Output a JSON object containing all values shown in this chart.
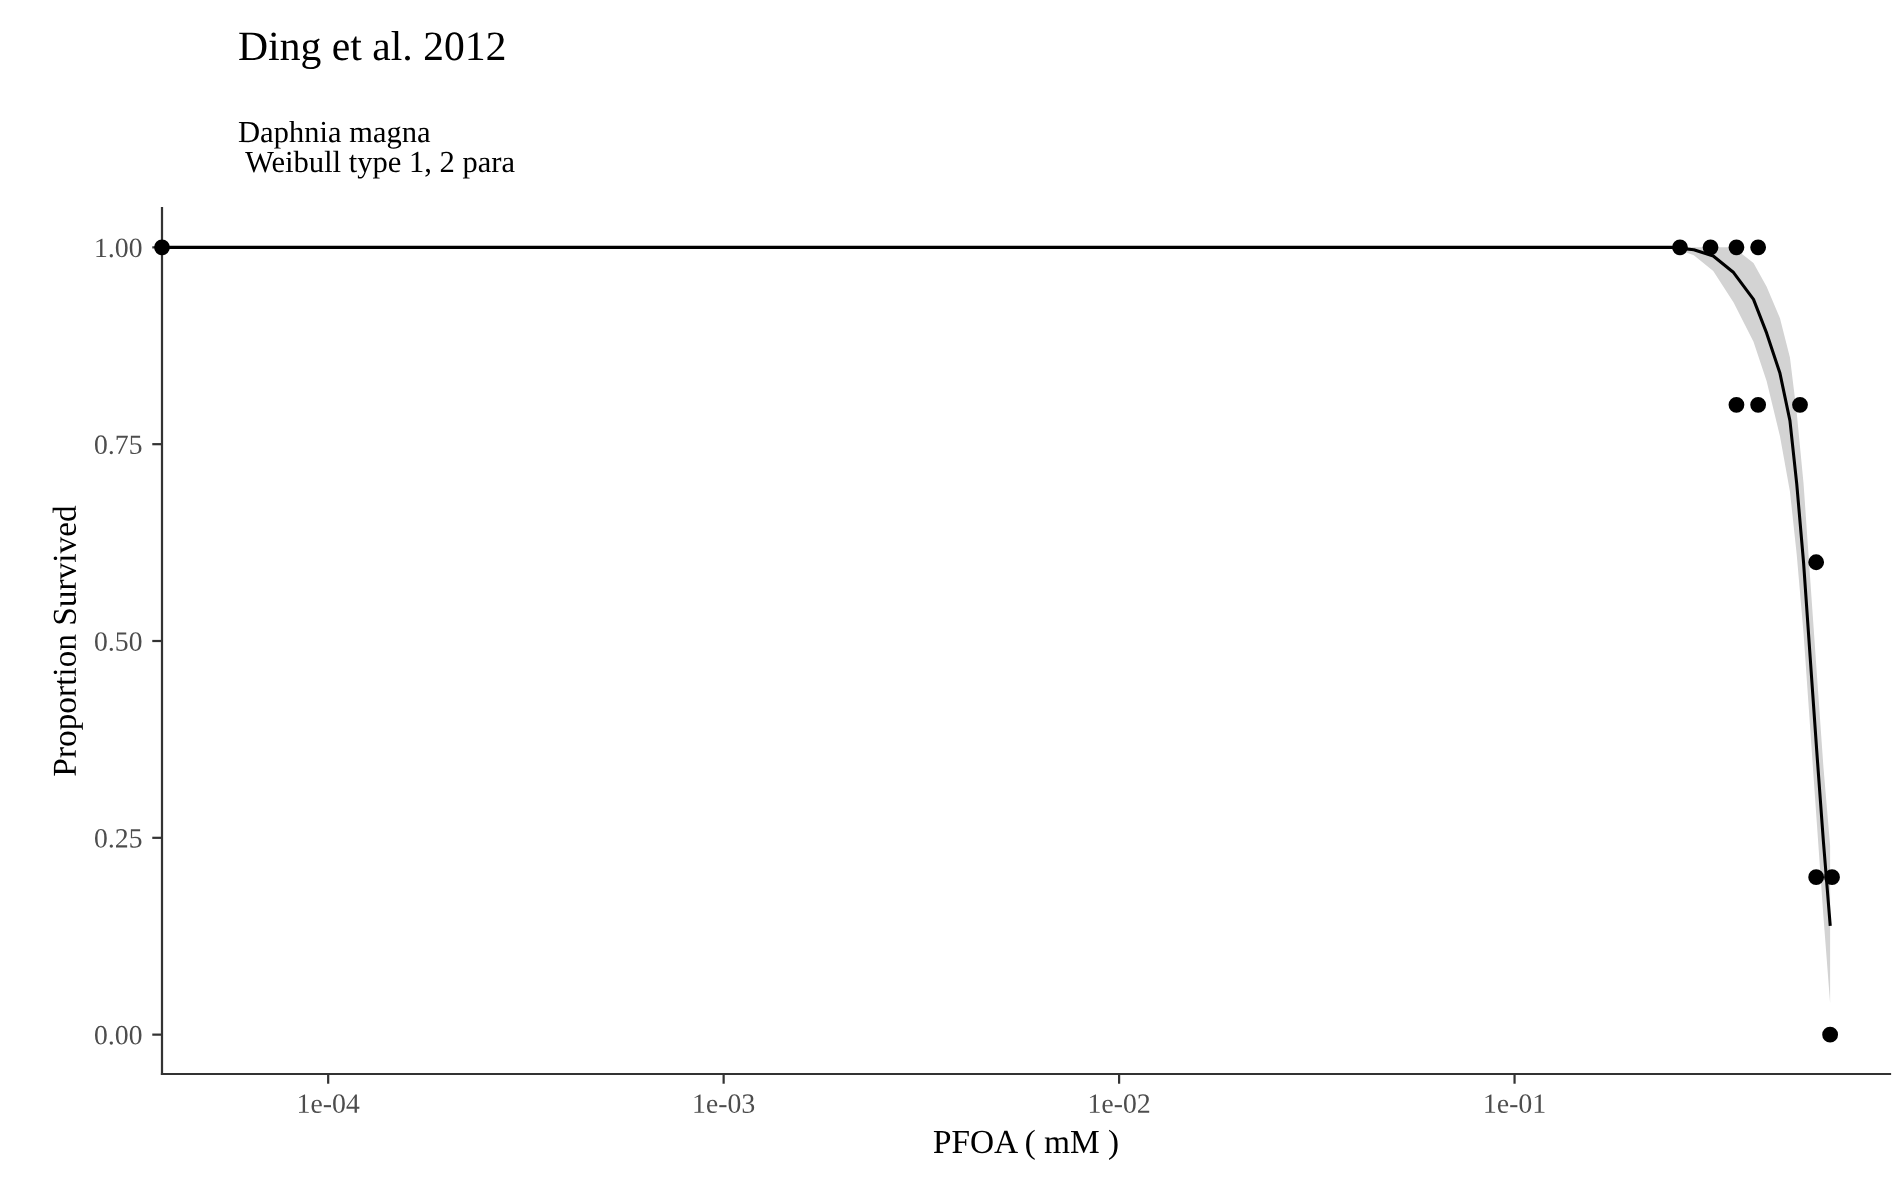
{
  "chart_data": {
    "type": "scatter",
    "title": "Ding et al. 2012",
    "subtitle": "Daphnia magna\n Weibull type 1, 2 para",
    "xlabel": "PFOA ( mM )",
    "ylabel": "Proportion Survived",
    "log": "x",
    "xlim": [
      3.8e-05,
      0.89
    ],
    "ylim": [
      -0.05,
      1.05
    ],
    "xticks": [
      {
        "value": 0.0001,
        "label": "1e-04"
      },
      {
        "value": 0.001,
        "label": "1e-03"
      },
      {
        "value": 0.01,
        "label": "1e-02"
      },
      {
        "value": 0.1,
        "label": "1e-01"
      }
    ],
    "yticks": [
      {
        "value": 0,
        "label": "0.00"
      },
      {
        "value": 0.25,
        "label": "0.25"
      },
      {
        "value": 0.5,
        "label": "0.50"
      },
      {
        "value": 0.75,
        "label": "0.75"
      },
      {
        "value": 1,
        "label": "1.00"
      }
    ],
    "grid": false,
    "series": [
      {
        "marker": "circle",
        "color": "#000000",
        "x": [
          3.8e-05,
          0.262,
          0.313,
          0.364,
          0.413,
          0.364,
          0.413,
          0.527,
          0.579,
          0.579,
          0.635,
          0.628
        ],
        "values": [
          1,
          1,
          1,
          1,
          1,
          0.8,
          0.8,
          0.8,
          0.6,
          0.2,
          0.2,
          0
        ]
      },
      {
        "type": "line",
        "marker": "none",
        "color": "#000000",
        "line_style": "solid",
        "x": [
          3.8e-05,
          0.25,
          0.284,
          0.318,
          0.358,
          0.402,
          0.434,
          0.469,
          0.497,
          0.517,
          0.538,
          0.559,
          0.581,
          0.604,
          0.628
        ],
        "values": [
          1,
          1,
          0.997,
          0.989,
          0.968,
          0.934,
          0.891,
          0.84,
          0.78,
          0.7,
          0.6,
          0.48,
          0.36,
          0.245,
          0.14
        ],
        "lower": [
          1,
          1,
          0.99,
          0.97,
          0.93,
          0.88,
          0.83,
          0.76,
          0.69,
          0.61,
          0.51,
          0.39,
          0.27,
          0.15,
          0.04
        ],
        "upper": [
          1,
          1,
          1,
          1,
          1,
          0.98,
          0.95,
          0.91,
          0.86,
          0.79,
          0.7,
          0.58,
          0.46,
          0.34,
          0.24
        ]
      }
    ]
  }
}
